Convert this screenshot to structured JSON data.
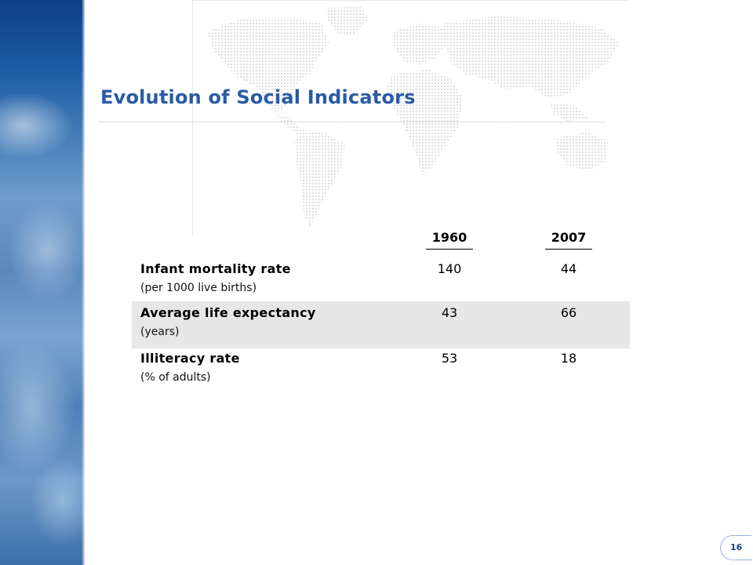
{
  "slide": {
    "title": "Evolution of Social Indicators",
    "page_number": "16"
  },
  "table": {
    "columns": [
      "1960",
      "2007"
    ],
    "rows": [
      {
        "label": "Infant mortality rate",
        "unit": "(per 1000 live births)",
        "values": [
          "140",
          "44"
        ],
        "shaded": false
      },
      {
        "label": "Average life expectancy",
        "unit": "(years)",
        "values": [
          "43",
          "66"
        ],
        "shaded": true
      },
      {
        "label": "Illiteracy rate",
        "unit": "(% of adults)",
        "values": [
          "53",
          "18"
        ],
        "shaded": false
      }
    ]
  },
  "colors": {
    "title": "#2a5ba3",
    "row_shade": "#e7e7e7",
    "map_dots": "#dcdcdc"
  },
  "decorations": {
    "left_strip": "earth-from-space-image",
    "background": "world-map-dotted"
  }
}
